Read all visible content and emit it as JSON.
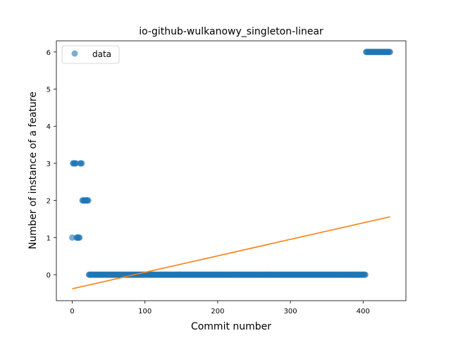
{
  "chart_data": {
    "type": "scatter",
    "title": "io-github-wulkanowy_singleton-linear",
    "xlabel": "Commit number",
    "ylabel": "Number of instance of a feature",
    "xlim": [
      -21.8,
      458.8
    ],
    "ylim": [
      -0.7,
      6.3
    ],
    "xticks": [
      0,
      100,
      200,
      300,
      400
    ],
    "yticks": [
      0,
      1,
      2,
      3,
      4,
      5,
      6
    ],
    "legend": {
      "position": "top-left",
      "entries": [
        "data"
      ]
    },
    "colors": {
      "data": "#1f77b4",
      "fit": "#ff7f0e"
    },
    "series": [
      {
        "name": "data",
        "points": [
          [
            0,
            1
          ],
          [
            1,
            3
          ],
          [
            2,
            3
          ],
          [
            3,
            3
          ],
          [
            4,
            3
          ],
          [
            5,
            3
          ],
          [
            6,
            1
          ],
          [
            7,
            1
          ],
          [
            8,
            1
          ],
          [
            9,
            1
          ],
          [
            10,
            1
          ],
          [
            11,
            3
          ],
          [
            12,
            3
          ],
          [
            13,
            3
          ],
          [
            14,
            2
          ],
          [
            15,
            2
          ],
          [
            16,
            2
          ],
          [
            17,
            2
          ],
          [
            18,
            2
          ],
          [
            19,
            2
          ],
          [
            20,
            2
          ],
          [
            21,
            2
          ],
          [
            22,
            2
          ]
        ],
        "ranges": [
          {
            "from": 23,
            "to": 403,
            "y": 0
          },
          {
            "from": 404,
            "to": 437,
            "y": 6
          }
        ]
      }
    ],
    "fit_line": {
      "x": [
        0,
        437
      ],
      "y": [
        -0.38,
        1.56
      ]
    }
  }
}
